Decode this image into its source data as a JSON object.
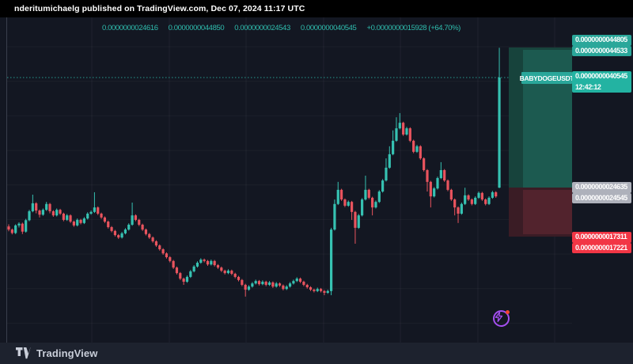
{
  "attribution": {
    "text": "nderitumichaelg published on TradingView.com, Dec 07, 2024 11:17 UTC"
  },
  "ohlc_row": {
    "open": "0.0000000024616",
    "high": "0.0000000044850",
    "low": "0.0000000024543",
    "close": "0.0000000040545",
    "change": "+0.0000000015928 (+64.70%)"
  },
  "symbol_tag": {
    "label": "BABYDOGEUSDT"
  },
  "price_labels": {
    "target": [
      {
        "text": "0.0000000044805"
      },
      {
        "text": "0.0000000044533"
      }
    ],
    "current": {
      "price": "0.0000000040545",
      "countdown": "12:42:12"
    },
    "entry": [
      {
        "text": "0.0000000024635"
      },
      {
        "text": "0.0000000024545"
      }
    ],
    "stop": [
      {
        "text": "0.0000000017311"
      },
      {
        "text": "0.0000000017221"
      }
    ]
  },
  "footer": {
    "brand": "TradingView"
  },
  "colors": {
    "up": "#36c2b2",
    "down": "#e9545e",
    "accent_teal": "#2aa79a",
    "current_label": "#23b3a2",
    "gray_label": "#aeb1bb",
    "red_label": "#f23645",
    "purple": "#a44ff0"
  },
  "chart_data": {
    "type": "candlestick",
    "symbol": "BABYDOGEUSDT",
    "unit": "price values in 1e-10 USDT (e.g. 40545 = 0.0000000040545)",
    "price_line": 40545,
    "levels": {
      "target": [
        44805,
        44533
      ],
      "entry": [
        24635,
        24545
      ],
      "stop": [
        17311,
        17221
      ]
    },
    "candles": [
      [
        19000,
        19300,
        18300,
        18550
      ],
      [
        18550,
        18700,
        17850,
        18050
      ],
      [
        18050,
        19300,
        17900,
        19150
      ],
      [
        19150,
        19600,
        18850,
        19400
      ],
      [
        19400,
        19550,
        17900,
        18250
      ],
      [
        18250,
        20100,
        18100,
        19900
      ],
      [
        19900,
        21400,
        19750,
        21200
      ],
      [
        21200,
        23600,
        21050,
        22350
      ],
      [
        22350,
        22500,
        20900,
        21300
      ],
      [
        21300,
        21450,
        20300,
        20700
      ],
      [
        20700,
        21600,
        20550,
        21400
      ],
      [
        21400,
        22550,
        21250,
        22250
      ],
      [
        22250,
        22400,
        20900,
        21200
      ],
      [
        21200,
        21350,
        20400,
        20600
      ],
      [
        20600,
        21600,
        20450,
        21400
      ],
      [
        21400,
        21550,
        20650,
        20850
      ],
      [
        20850,
        21000,
        19750,
        19950
      ],
      [
        19950,
        20800,
        19800,
        20600
      ],
      [
        20600,
        20750,
        19500,
        19700
      ],
      [
        19700,
        19850,
        18950,
        19150
      ],
      [
        19150,
        20150,
        19000,
        19950
      ],
      [
        19950,
        20100,
        19300,
        19500
      ],
      [
        19500,
        20350,
        19350,
        20150
      ],
      [
        20150,
        21050,
        20000,
        20850
      ],
      [
        20850,
        21300,
        20700,
        21100
      ],
      [
        21100,
        23950,
        20950,
        21750
      ],
      [
        21750,
        21900,
        20650,
        20850
      ],
      [
        20850,
        21000,
        20100,
        20300
      ],
      [
        20300,
        20450,
        19500,
        19700
      ],
      [
        19700,
        19850,
        18700,
        18900
      ],
      [
        18900,
        19050,
        18150,
        18350
      ],
      [
        18350,
        18500,
        17550,
        17750
      ],
      [
        17750,
        17900,
        17200,
        17400
      ],
      [
        17400,
        18200,
        17250,
        18000
      ],
      [
        18000,
        18750,
        17850,
        18550
      ],
      [
        18550,
        19450,
        18400,
        19250
      ],
      [
        19250,
        22450,
        19100,
        20600
      ],
      [
        20600,
        20750,
        19750,
        19950
      ],
      [
        19950,
        20100,
        19050,
        19250
      ],
      [
        19250,
        19400,
        18350,
        18550
      ],
      [
        18550,
        18700,
        17700,
        17900
      ],
      [
        17900,
        18050,
        17200,
        17400
      ],
      [
        17400,
        17550,
        16650,
        16850
      ],
      [
        16850,
        17000,
        16050,
        16250
      ],
      [
        16250,
        16400,
        15500,
        15700
      ],
      [
        15700,
        15850,
        14900,
        15100
      ],
      [
        15100,
        15250,
        14350,
        14550
      ],
      [
        14550,
        14700,
        13800,
        14000
      ],
      [
        14000,
        14150,
        12850,
        13050
      ],
      [
        13050,
        13200,
        12050,
        12250
      ],
      [
        12250,
        12400,
        11250,
        11450
      ],
      [
        11450,
        11600,
        10550,
        11000
      ],
      [
        11000,
        11900,
        10850,
        11700
      ],
      [
        11700,
        12700,
        11550,
        12500
      ],
      [
        12500,
        13400,
        12350,
        13200
      ],
      [
        13200,
        13950,
        13050,
        13750
      ],
      [
        13750,
        14400,
        13600,
        14200
      ],
      [
        14200,
        14350,
        13800,
        14000
      ],
      [
        14000,
        14150,
        13300,
        13500
      ],
      [
        13500,
        14200,
        13350,
        14000
      ],
      [
        14000,
        14150,
        13200,
        13400
      ],
      [
        13400,
        13550,
        12850,
        13050
      ],
      [
        13050,
        13200,
        12400,
        12600
      ],
      [
        12600,
        12750,
        12050,
        12250
      ],
      [
        12250,
        12800,
        12100,
        12600
      ],
      [
        12600,
        12750,
        11950,
        12150
      ],
      [
        12150,
        12300,
        11500,
        11700
      ],
      [
        11700,
        11850,
        11050,
        11250
      ],
      [
        11250,
        11400,
        10350,
        10550
      ],
      [
        10550,
        10700,
        8850,
        9850
      ],
      [
        9850,
        10500,
        9700,
        10300
      ],
      [
        10300,
        10950,
        10150,
        10750
      ],
      [
        10750,
        11300,
        10600,
        11100
      ],
      [
        11100,
        11250,
        10450,
        10650
      ],
      [
        10650,
        11200,
        10500,
        11000
      ],
      [
        11000,
        11150,
        10350,
        10550
      ],
      [
        10550,
        11100,
        10400,
        10900
      ],
      [
        10900,
        11050,
        10100,
        10300
      ],
      [
        10300,
        10950,
        10150,
        10750
      ],
      [
        10750,
        10900,
        10250,
        10450
      ],
      [
        10450,
        10600,
        9750,
        9950
      ],
      [
        9950,
        10500,
        9800,
        10300
      ],
      [
        10300,
        10950,
        10150,
        10750
      ],
      [
        10750,
        11300,
        10600,
        11100
      ],
      [
        11100,
        11650,
        10950,
        11450
      ],
      [
        11450,
        11600,
        10800,
        11000
      ],
      [
        11000,
        11150,
        10350,
        10550
      ],
      [
        10550,
        10700,
        10000,
        10200
      ],
      [
        10200,
        10350,
        9650,
        9850
      ],
      [
        9850,
        10000,
        9450,
        9650
      ],
      [
        9650,
        10150,
        9500,
        9950
      ],
      [
        9950,
        10100,
        9450,
        9650
      ],
      [
        9650,
        9800,
        9050,
        9400
      ],
      [
        9400,
        9850,
        9250,
        9650
      ],
      [
        9650,
        18800,
        9050,
        18550
      ],
      [
        18550,
        22900,
        18400,
        22250
      ],
      [
        22250,
        25450,
        22100,
        24300
      ],
      [
        24300,
        24450,
        22700,
        22900
      ],
      [
        22900,
        23050,
        21800,
        22000
      ],
      [
        22000,
        22750,
        21850,
        22550
      ],
      [
        22550,
        22700,
        19950,
        21100
      ],
      [
        21100,
        21250,
        16500,
        18800
      ],
      [
        18800,
        20800,
        18650,
        20600
      ],
      [
        20600,
        23100,
        20450,
        22900
      ],
      [
        22900,
        26350,
        22750,
        24300
      ],
      [
        24300,
        24450,
        22950,
        23150
      ],
      [
        23150,
        23300,
        20600,
        21750
      ],
      [
        21750,
        22750,
        21600,
        22550
      ],
      [
        22550,
        24250,
        22400,
        24050
      ],
      [
        24050,
        25850,
        23900,
        25650
      ],
      [
        25650,
        28850,
        25500,
        27500
      ],
      [
        27500,
        30600,
        27350,
        29450
      ],
      [
        29450,
        32900,
        29300,
        31400
      ],
      [
        31400,
        34800,
        31250,
        33200
      ],
      [
        33200,
        35400,
        33050,
        34000
      ],
      [
        34000,
        34150,
        32100,
        32300
      ],
      [
        32300,
        33400,
        32150,
        33200
      ],
      [
        33200,
        33350,
        31200,
        31400
      ],
      [
        31400,
        31550,
        29600,
        29800
      ],
      [
        29800,
        30800,
        29650,
        30600
      ],
      [
        30600,
        30750,
        28650,
        28850
      ],
      [
        28850,
        29000,
        26950,
        27150
      ],
      [
        27150,
        27300,
        24050,
        25450
      ],
      [
        25450,
        25600,
        21750,
        23350
      ],
      [
        23350,
        24700,
        23200,
        24500
      ],
      [
        24500,
        26200,
        24350,
        26000
      ],
      [
        26000,
        28300,
        25850,
        27150
      ],
      [
        27150,
        27300,
        25450,
        25650
      ],
      [
        25650,
        25800,
        24100,
        24300
      ],
      [
        24300,
        24450,
        22700,
        22900
      ],
      [
        22900,
        23050,
        20600,
        21750
      ],
      [
        21750,
        21900,
        19500,
        20850
      ],
      [
        20850,
        22450,
        20700,
        22250
      ],
      [
        22250,
        24600,
        22100,
        23500
      ],
      [
        23500,
        23650,
        22700,
        22900
      ],
      [
        22900,
        23050,
        22050,
        22250
      ],
      [
        22250,
        23350,
        22100,
        23150
      ],
      [
        23150,
        24050,
        23000,
        23850
      ],
      [
        23850,
        24000,
        22700,
        22900
      ],
      [
        22900,
        23050,
        22050,
        22250
      ],
      [
        22250,
        23350,
        22100,
        23150
      ],
      [
        23150,
        24150,
        23000,
        23950
      ],
      [
        23950,
        24100,
        23150,
        23350
      ],
      [
        24616,
        44850,
        24543,
        40545
      ]
    ]
  }
}
